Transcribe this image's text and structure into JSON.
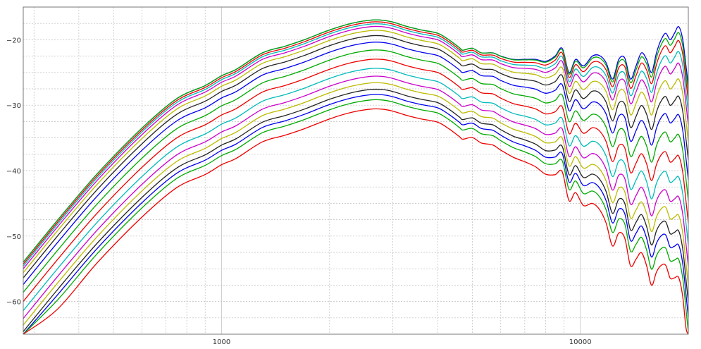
{
  "chart_data": {
    "type": "line",
    "title": "",
    "xlabel": "",
    "ylabel": "",
    "xscale": "log",
    "xlim": [
      280,
      20000
    ],
    "ylim": [
      -65,
      -15
    ],
    "grid": true,
    "legend": "none",
    "x_tick_labels": [
      {
        "value": 1000,
        "label": "1000"
      },
      {
        "value": 10000,
        "label": "10000"
      }
    ],
    "y_tick_labels": [
      {
        "value": -20,
        "label": "−20"
      },
      {
        "value": -30,
        "label": "−30"
      },
      {
        "value": -40,
        "label": "−40"
      },
      {
        "value": -50,
        "label": "−50"
      },
      {
        "value": -60,
        "label": "−60"
      }
    ],
    "x": [
      280,
      350,
      450,
      600,
      750,
      900,
      1000,
      1100,
      1300,
      1500,
      1700,
      2000,
      2300,
      2600,
      2800,
      3000,
      3300,
      3600,
      4000,
      4300,
      4600,
      4700,
      5000,
      5300,
      5700,
      6000,
      6500,
      7000,
      7500,
      8000,
      8500,
      8900,
      9300,
      9700,
      10200,
      10800,
      11300,
      11800,
      12300,
      12800,
      13300,
      13800,
      14300,
      14800,
      15300,
      15800,
      16300,
      16800,
      17300,
      17800,
      18300,
      18800,
      19300,
      19700,
      20000
    ],
    "base_curve": [
      -54.0,
      -47.5,
      -40.5,
      -33.5,
      -29.0,
      -27.0,
      -25.5,
      -24.5,
      -22.0,
      -21.0,
      -20.0,
      -18.5,
      -17.5,
      -17.0,
      -17.0,
      -17.3,
      -18.0,
      -18.5,
      -19.0,
      -20.0,
      -21.2,
      -21.6,
      -21.3,
      -22.0,
      -22.0,
      -22.5,
      -23.0,
      -23.0,
      -23.0,
      -23.3,
      -22.5,
      -21.3,
      -25.0,
      -23.0,
      -24.0,
      -22.5,
      -22.4,
      -23.5,
      -26.0,
      -23.0,
      -22.8,
      -26.0,
      -24.0,
      -22.0,
      -23.0,
      -25.0,
      -22.0,
      -20.0,
      -19.0,
      -20.0,
      -19.0,
      -18.0,
      -20.0,
      -24.0,
      -27.0
    ],
    "series": [
      {
        "color": "#0000ee",
        "offset": 0.0,
        "hf_drop": 0
      },
      {
        "color": "#00aa00",
        "offset": 0.0,
        "hf_drop": 1.0
      },
      {
        "color": "#ee0000",
        "offset": 0.3,
        "hf_drop": 2.0
      },
      {
        "color": "#00bbbb",
        "offset": 0.6,
        "hf_drop": 3.5
      },
      {
        "color": "#cc00cc",
        "offset": 1.0,
        "hf_drop": 5.0
      },
      {
        "color": "#bbbb00",
        "offset": 1.6,
        "hf_drop": 7.0
      },
      {
        "color": "#222222",
        "offset": 2.4,
        "hf_drop": 9.0
      },
      {
        "color": "#0000ee",
        "offset": 3.4,
        "hf_drop": 11.0
      },
      {
        "color": "#00aa00",
        "offset": 4.6,
        "hf_drop": 13.0
      },
      {
        "color": "#ee0000",
        "offset": 6.0,
        "hf_drop": 15.0
      },
      {
        "color": "#00bbbb",
        "offset": 7.4,
        "hf_drop": 17.0
      },
      {
        "color": "#cc00cc",
        "offset": 8.6,
        "hf_drop": 19.0
      },
      {
        "color": "#bbbb00",
        "offset": 9.6,
        "hf_drop": 21.0
      },
      {
        "color": "#222222",
        "offset": 10.6,
        "hf_drop": 22.5
      },
      {
        "color": "#0000ee",
        "offset": 11.4,
        "hf_drop": 24.0
      },
      {
        "color": "#00aa00",
        "offset": 12.2,
        "hf_drop": 25.5
      },
      {
        "color": "#ee0000",
        "offset": 13.6,
        "hf_drop": 27.0
      }
    ]
  }
}
